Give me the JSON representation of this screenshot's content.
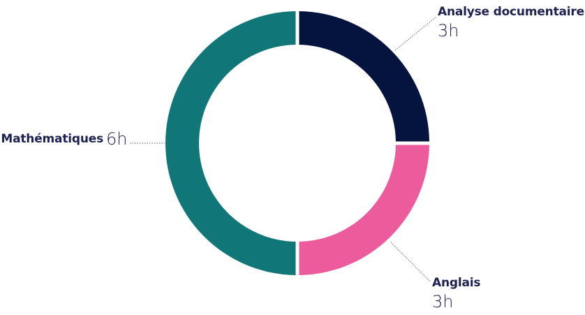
{
  "chart_data": {
    "type": "pie",
    "donut": true,
    "title": "",
    "unit": "h",
    "slices": [
      {
        "name": "Analyse documentaire",
        "value": 3,
        "value_label": "3h",
        "color": "#04143f"
      },
      {
        "name": "Anglais",
        "value": 3,
        "value_label": "3h",
        "color": "#ec5c9d"
      },
      {
        "name": "Mathématiques",
        "value": 6,
        "value_label": "6h",
        "color": "#107678"
      }
    ],
    "start_angle_deg": 0,
    "direction": "clockwise",
    "label_color": "#1d2151",
    "leader_color": "#5a5a5a"
  }
}
